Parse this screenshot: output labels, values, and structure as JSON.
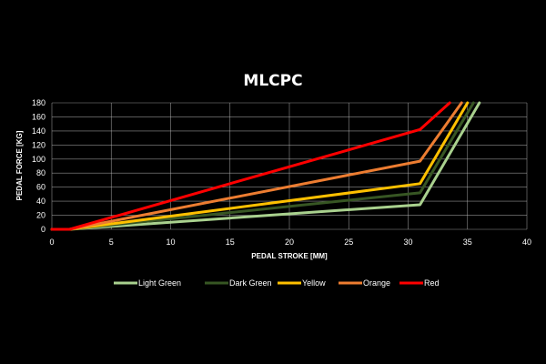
{
  "chart_data": {
    "type": "line",
    "title": "MLCPC",
    "xlabel": "PEDAL STROKE [MM]",
    "ylabel": "PEDAL FORCE [KG]",
    "xlim": [
      0,
      40
    ],
    "ylim": [
      0,
      180
    ],
    "xticks": [
      0,
      5,
      10,
      15,
      20,
      25,
      30,
      35,
      40
    ],
    "yticks": [
      0,
      20,
      40,
      60,
      80,
      100,
      120,
      140,
      160,
      180
    ],
    "grid": true,
    "legend_position": "bottom",
    "series": [
      {
        "name": "Light Green",
        "color": "#a9d18e",
        "x": [
          0,
          1.5,
          31,
          36
        ],
        "y": [
          0,
          0,
          35,
          180
        ]
      },
      {
        "name": "Dark Green",
        "color": "#375623",
        "x": [
          0,
          1.5,
          31,
          35.5
        ],
        "y": [
          0,
          0,
          52,
          180
        ]
      },
      {
        "name": "Yellow",
        "color": "#ffc000",
        "x": [
          0,
          1.5,
          31,
          35
        ],
        "y": [
          0,
          0,
          65,
          180
        ]
      },
      {
        "name": "Orange",
        "color": "#ed7d31",
        "x": [
          0,
          1.5,
          31,
          34.5
        ],
        "y": [
          0,
          0,
          97,
          180
        ]
      },
      {
        "name": "Red",
        "color": "#ff0000",
        "x": [
          0,
          1.5,
          31,
          33.5
        ],
        "y": [
          0,
          0,
          142,
          180
        ]
      }
    ]
  }
}
